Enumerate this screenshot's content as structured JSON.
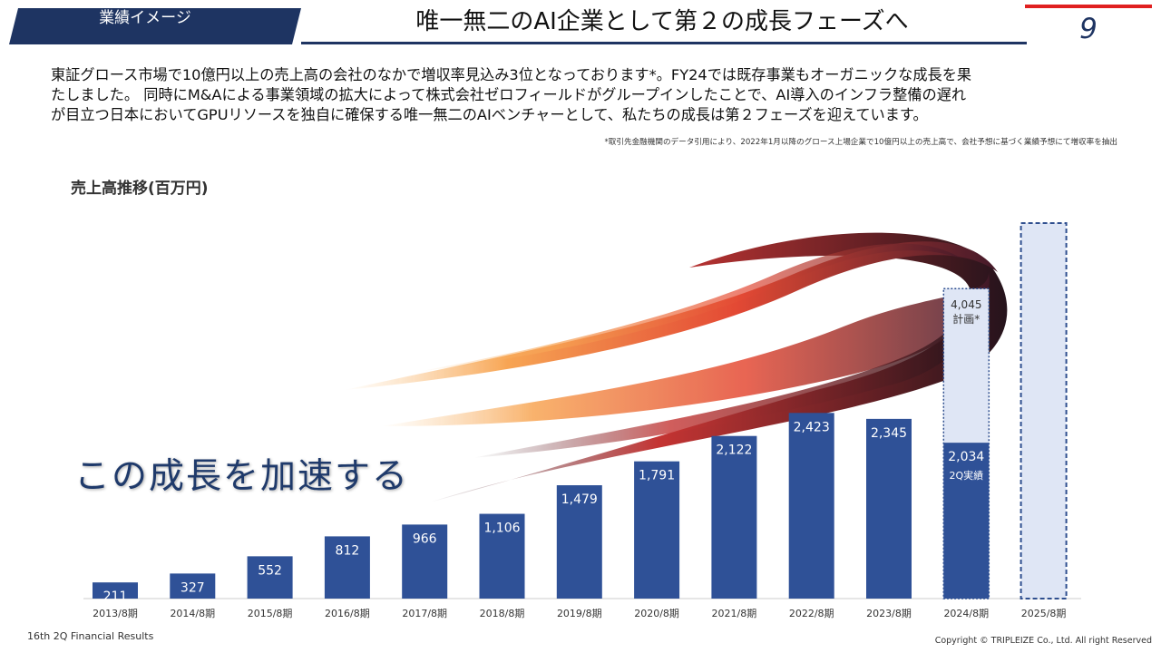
{
  "header": {
    "tag": "業績イメージ",
    "title": "唯一無二のAI企業として第２の成長フェーズへ",
    "page_number": "9"
  },
  "intro": {
    "lines": [
      "東証グロース市場で10億円以上の売上高の会社のなかで増収率見込み3位となっております*。FY24では既存事業もオーガニックな成長を果",
      "たしました。 同時にM&Aによる事業領域の拡大によって株式会社ゼロフィールドがグループインしたことで、AI導入のインフラ整備の遅れ",
      "が目立つ日本においてGPUリソースを独自に確保する唯一無二のAIベンチャーとして、私たちの成長は第２フェーズを迎えています。"
    ],
    "footnote": "*取引先金融機関のデータ引用により、2022年1月以降のグロース上場企業で10億円以上の売上高で、会社予想に基づく業績予想にて増収率を抽出"
  },
  "chart_title": "売上高推移(百万円)",
  "headline": "この成長を加速する",
  "chart_data": {
    "type": "bar",
    "categories": [
      "2013/8期",
      "2014/8期",
      "2015/8期",
      "2016/8期",
      "2017/8期",
      "2018/8期",
      "2019/8期",
      "2020/8期",
      "2021/8期",
      "2022/8期",
      "2023/8期",
      "2024/8期",
      "2025/8期"
    ],
    "values": [
      211,
      327,
      552,
      812,
      966,
      1106,
      1479,
      1791,
      2122,
      2423,
      2345,
      2034,
      null
    ],
    "value_labels": [
      "211",
      "327",
      "552",
      "812",
      "966",
      "1,106",
      "1,479",
      "1,791",
      "2,122",
      "2,423",
      "2,345",
      "2,034",
      ""
    ],
    "plan": {
      "category": "2024/8期",
      "value": 4045,
      "label": "4,045",
      "note": "計画*",
      "actual_note": "2Q実績"
    },
    "placeholder_category": "2025/8期",
    "ylim": [
      0,
      4900
    ],
    "colors": {
      "bar": "#2f5197",
      "plan_fill": "#dfe6f5",
      "plan_border": "#2f4f8f",
      "axis": "#cccccc",
      "label": "#ffffff",
      "tick": "#333333"
    }
  },
  "footer": {
    "left": "16th 2Q Financial Results",
    "right": "Copyright © TRIPLEIZE Co., Ltd.  All right Reserved"
  }
}
